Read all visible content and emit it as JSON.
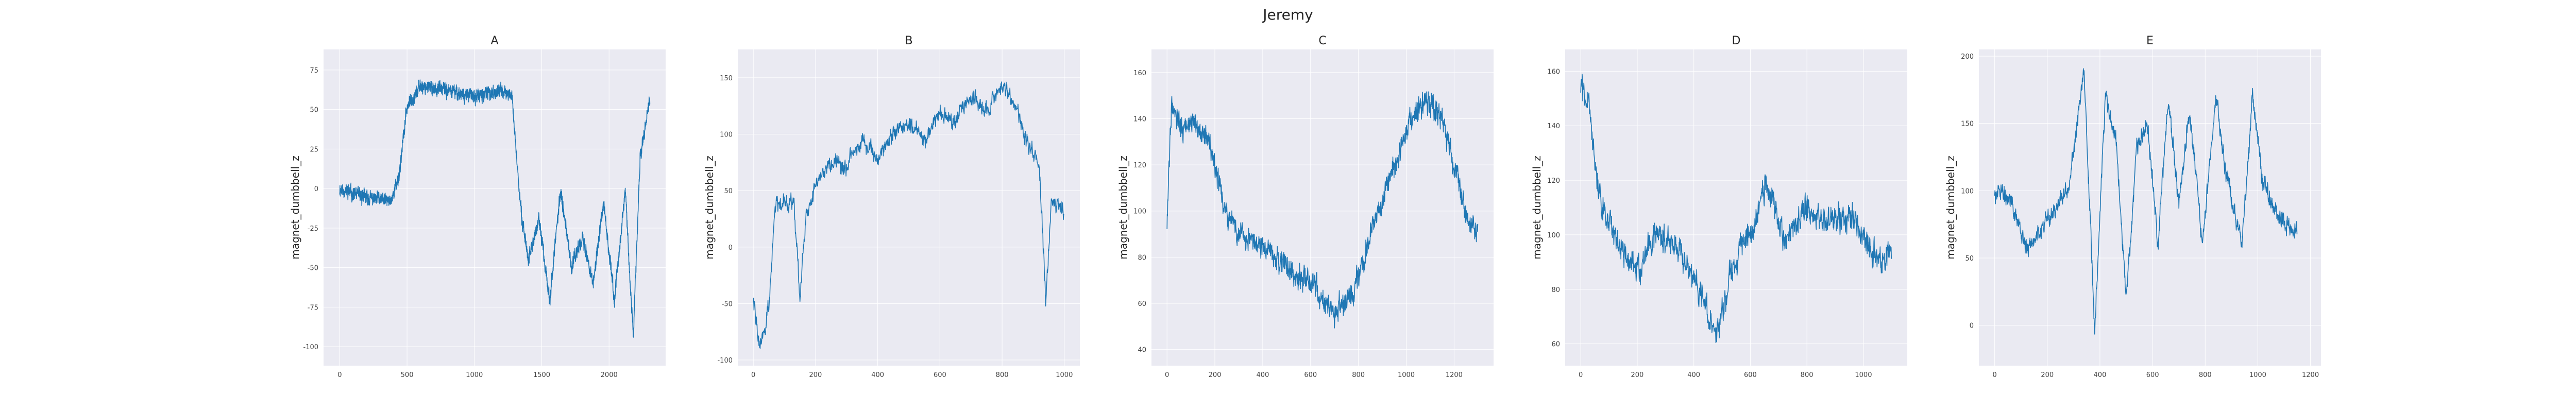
{
  "figure": {
    "suptitle": "Jeremy",
    "background": "#ffffff",
    "axes_background": "#eaeaf2",
    "grid_color": "#ffffff",
    "line_color": "#1f77b4"
  },
  "chart_data": [
    {
      "type": "line",
      "title": "A",
      "xlabel": "",
      "ylabel": "magnet_dumbbell_z",
      "xlim": [
        -120,
        2420
      ],
      "ylim": [
        -112,
        88
      ],
      "xticks": [
        0,
        500,
        1000,
        1500,
        2000
      ],
      "yticks": [
        -100,
        -75,
        -50,
        -25,
        0,
        25,
        50,
        75
      ],
      "grid": true,
      "legend": "none",
      "n": 2304,
      "anchors": [
        [
          0,
          0
        ],
        [
          200,
          -6
        ],
        [
          380,
          -8
        ],
        [
          440,
          8
        ],
        [
          500,
          52
        ],
        [
          600,
          65
        ],
        [
          800,
          62
        ],
        [
          1000,
          58
        ],
        [
          1200,
          62
        ],
        [
          1280,
          58
        ],
        [
          1340,
          -10
        ],
        [
          1400,
          -45
        ],
        [
          1480,
          -20
        ],
        [
          1560,
          -70
        ],
        [
          1640,
          0
        ],
        [
          1720,
          -50
        ],
        [
          1800,
          -30
        ],
        [
          1880,
          -60
        ],
        [
          1960,
          -10
        ],
        [
          2040,
          -70
        ],
        [
          2120,
          0
        ],
        [
          2180,
          -95
        ],
        [
          2230,
          20
        ],
        [
          2300,
          55
        ]
      ],
      "noise": 6,
      "seed": 11
    },
    {
      "type": "line",
      "title": "B",
      "xlabel": "",
      "ylabel": "magnet_dumbbell_z",
      "xlim": [
        -50,
        1050
      ],
      "ylim": [
        -105,
        175
      ],
      "xticks": [
        0,
        200,
        400,
        600,
        800,
        1000
      ],
      "yticks": [
        -100,
        -50,
        0,
        50,
        100,
        150
      ],
      "grid": true,
      "legend": "none",
      "n": 1000,
      "anchors": [
        [
          0,
          -45
        ],
        [
          20,
          -90
        ],
        [
          50,
          -55
        ],
        [
          70,
          38
        ],
        [
          100,
          42
        ],
        [
          130,
          40
        ],
        [
          150,
          -45
        ],
        [
          170,
          30
        ],
        [
          200,
          55
        ],
        [
          250,
          75
        ],
        [
          300,
          70
        ],
        [
          350,
          95
        ],
        [
          400,
          80
        ],
        [
          450,
          100
        ],
        [
          500,
          110
        ],
        [
          550,
          95
        ],
        [
          600,
          120
        ],
        [
          650,
          110
        ],
        [
          700,
          135
        ],
        [
          750,
          120
        ],
        [
          800,
          145
        ],
        [
          850,
          120
        ],
        [
          880,
          95
        ],
        [
          920,
          70
        ],
        [
          940,
          -45
        ],
        [
          960,
          45
        ],
        [
          1000,
          30
        ]
      ],
      "noise": 10,
      "seed": 22
    },
    {
      "type": "line",
      "title": "C",
      "xlabel": "",
      "ylabel": "magnet_dumbbell_z",
      "xlim": [
        -65,
        1365
      ],
      "ylim": [
        33,
        170
      ],
      "xticks": [
        0,
        200,
        400,
        600,
        800,
        1000,
        1200
      ],
      "yticks": [
        40,
        60,
        80,
        100,
        120,
        140,
        160
      ],
      "grid": true,
      "legend": "none",
      "n": 1300,
      "anchors": [
        [
          0,
          95
        ],
        [
          20,
          150
        ],
        [
          60,
          135
        ],
        [
          120,
          140
        ],
        [
          180,
          128
        ],
        [
          240,
          100
        ],
        [
          300,
          90
        ],
        [
          400,
          85
        ],
        [
          500,
          75
        ],
        [
          600,
          70
        ],
        [
          700,
          55
        ],
        [
          780,
          65
        ],
        [
          850,
          90
        ],
        [
          920,
          110
        ],
        [
          1000,
          135
        ],
        [
          1080,
          148
        ],
        [
          1150,
          140
        ],
        [
          1200,
          120
        ],
        [
          1260,
          95
        ],
        [
          1300,
          90
        ]
      ],
      "noise": 7,
      "seed": 33
    },
    {
      "type": "line",
      "title": "D",
      "xlabel": "",
      "ylabel": "magnet_dumbbell_z",
      "xlim": [
        -55,
        1155
      ],
      "ylim": [
        52,
        168
      ],
      "xticks": [
        0,
        200,
        400,
        600,
        800,
        1000
      ],
      "yticks": [
        60,
        80,
        100,
        120,
        140,
        160
      ],
      "grid": true,
      "legend": "none",
      "n": 1100,
      "anchors": [
        [
          0,
          155
        ],
        [
          30,
          148
        ],
        [
          60,
          115
        ],
        [
          120,
          100
        ],
        [
          200,
          85
        ],
        [
          260,
          100
        ],
        [
          340,
          95
        ],
        [
          420,
          80
        ],
        [
          480,
          62
        ],
        [
          540,
          90
        ],
        [
          600,
          100
        ],
        [
          660,
          120
        ],
        [
          720,
          98
        ],
        [
          800,
          110
        ],
        [
          880,
          105
        ],
        [
          960,
          108
        ],
        [
          1020,
          95
        ],
        [
          1060,
          90
        ],
        [
          1100,
          95
        ]
      ],
      "noise": 7,
      "seed": 44
    },
    {
      "type": "line",
      "title": "E",
      "xlabel": "",
      "ylabel": "magnet_dumbbell_z",
      "xlim": [
        -60,
        1240
      ],
      "ylim": [
        -30,
        205
      ],
      "xticks": [
        0,
        200,
        400,
        600,
        800,
        1000,
        1200
      ],
      "yticks": [
        0,
        50,
        100,
        150,
        200
      ],
      "grid": true,
      "legend": "none",
      "n": 1150,
      "anchors": [
        [
          0,
          100
        ],
        [
          60,
          95
        ],
        [
          120,
          55
        ],
        [
          200,
          80
        ],
        [
          280,
          100
        ],
        [
          340,
          190
        ],
        [
          380,
          -5
        ],
        [
          420,
          170
        ],
        [
          460,
          140
        ],
        [
          500,
          20
        ],
        [
          540,
          130
        ],
        [
          580,
          150
        ],
        [
          620,
          60
        ],
        [
          660,
          170
        ],
        [
          700,
          90
        ],
        [
          740,
          160
        ],
        [
          790,
          60
        ],
        [
          840,
          170
        ],
        [
          880,
          110
        ],
        [
          940,
          60
        ],
        [
          980,
          170
        ],
        [
          1020,
          105
        ],
        [
          1080,
          80
        ],
        [
          1150,
          70
        ]
      ],
      "noise": 9,
      "seed": 55
    }
  ]
}
